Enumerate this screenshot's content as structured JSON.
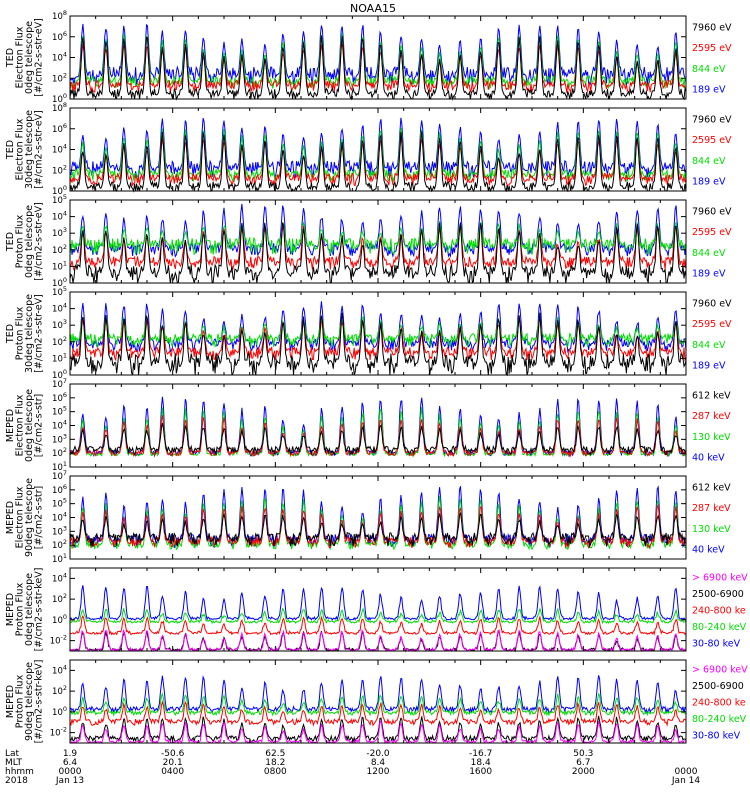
{
  "title": "NOAA15",
  "chart_data": [
    {
      "type": "line",
      "instrument": "TED",
      "ylabel": [
        "TED",
        "Electron Flux",
        "0deg telescope",
        "[#/cm2-s-str-eV]"
      ],
      "yticks": [
        {
          "v": 0,
          "t": "10",
          "e": "0"
        },
        {
          "v": 2,
          "t": "10",
          "e": "2"
        },
        {
          "v": 4,
          "t": "10",
          "e": "4"
        },
        {
          "v": 6,
          "t": "10",
          "e": "6"
        },
        {
          "v": 8,
          "t": "10",
          "e": "8"
        }
      ],
      "ylim": [
        0,
        8
      ],
      "series": [
        {
          "name": "7960 eV",
          "color": "#000000",
          "base": 0.4,
          "spread": 0.6,
          "peaks": 6.0
        },
        {
          "name": "2595 eV",
          "color": "#ff0000",
          "base": 1.2,
          "spread": 0.6,
          "peaks": 5.2
        },
        {
          "name": "844 eV",
          "color": "#00dd00",
          "base": 1.6,
          "spread": 0.6,
          "peaks": 6.2
        },
        {
          "name": "189 eV",
          "color": "#0000ff",
          "base": 2.2,
          "spread": 0.9,
          "peaks": 7.2
        }
      ]
    },
    {
      "type": "line",
      "instrument": "TED",
      "ylabel": [
        "TED",
        "Electron Flux",
        "30deg telescope",
        "[#/cm2-s-str-eV]"
      ],
      "yticks": [
        {
          "v": 0,
          "t": "10",
          "e": "0"
        },
        {
          "v": 2,
          "t": "10",
          "e": "2"
        },
        {
          "v": 4,
          "t": "10",
          "e": "4"
        },
        {
          "v": 6,
          "t": "10",
          "e": "6"
        },
        {
          "v": 8,
          "t": "10",
          "e": "8"
        }
      ],
      "ylim": [
        0,
        8
      ],
      "series": [
        {
          "name": "7960 eV",
          "color": "#000000",
          "base": 0.3,
          "spread": 0.6,
          "peaks": 5.6
        },
        {
          "name": "2595 eV",
          "color": "#ff0000",
          "base": 1.1,
          "spread": 0.6,
          "peaks": 5.0
        },
        {
          "name": "844 eV",
          "color": "#00dd00",
          "base": 1.5,
          "spread": 0.6,
          "peaks": 6.0
        },
        {
          "name": "189 eV",
          "color": "#0000ff",
          "base": 2.1,
          "spread": 0.8,
          "peaks": 7.0
        }
      ]
    },
    {
      "type": "line",
      "instrument": "TED",
      "ylabel": [
        "TED",
        "Proton Flux",
        "0deg telescope",
        "[#/cm2-s-str-eV]"
      ],
      "yticks": [
        {
          "v": 0,
          "t": "10",
          "e": "0"
        },
        {
          "v": 1,
          "t": "10",
          "e": "1"
        },
        {
          "v": 2,
          "t": "10",
          "e": "2"
        },
        {
          "v": 3,
          "t": "10",
          "e": "3"
        },
        {
          "v": 4,
          "t": "10",
          "e": "4"
        },
        {
          "v": 5,
          "t": "10",
          "e": "5"
        }
      ],
      "ylim": [
        0,
        5
      ],
      "series": [
        {
          "name": "7960 eV",
          "color": "#000000",
          "base": 0.5,
          "spread": 0.6,
          "peaks": 3.6
        },
        {
          "name": "2595 eV",
          "color": "#ff0000",
          "base": 1.2,
          "spread": 0.4,
          "peaks": 3.4
        },
        {
          "name": "844 eV",
          "color": "#00dd00",
          "base": 2.2,
          "spread": 0.5,
          "peaks": 3.6
        },
        {
          "name": "189 eV",
          "color": "#0000ff",
          "base": 2.0,
          "spread": 0.4,
          "peaks": 4.6
        }
      ]
    },
    {
      "type": "line",
      "instrument": "TED",
      "ylabel": [
        "TED",
        "Proton Flux",
        "30deg telescope",
        "[#/cm2-s-str-eV]"
      ],
      "yticks": [
        {
          "v": 0,
          "t": "10",
          "e": "0"
        },
        {
          "v": 1,
          "t": "10",
          "e": "1"
        },
        {
          "v": 2,
          "t": "10",
          "e": "2"
        },
        {
          "v": 3,
          "t": "10",
          "e": "3"
        },
        {
          "v": 4,
          "t": "10",
          "e": "4"
        },
        {
          "v": 5,
          "t": "10",
          "e": "5"
        }
      ],
      "ylim": [
        0,
        5
      ],
      "series": [
        {
          "name": "7960 eV",
          "color": "#000000",
          "base": 0.6,
          "spread": 0.7,
          "peaks": 3.6
        },
        {
          "name": "2595 eV",
          "color": "#ff0000",
          "base": 1.3,
          "spread": 0.4,
          "peaks": 3.3
        },
        {
          "name": "844 eV",
          "color": "#00dd00",
          "base": 2.1,
          "spread": 0.4,
          "peaks": 3.4
        },
        {
          "name": "189 eV",
          "color": "#0000ff",
          "base": 1.8,
          "spread": 0.4,
          "peaks": 4.3
        }
      ]
    },
    {
      "type": "line",
      "instrument": "MEPED",
      "ylabel": [
        "MEPED",
        "Electron Flux",
        "0deg telescope",
        "[#/cm2-s-str]"
      ],
      "yticks": [
        {
          "v": 1,
          "t": "10",
          "e": "1"
        },
        {
          "v": 2,
          "t": "10",
          "e": "2"
        },
        {
          "v": 3,
          "t": "10",
          "e": "3"
        },
        {
          "v": 4,
          "t": "10",
          "e": "4"
        },
        {
          "v": 5,
          "t": "10",
          "e": "5"
        },
        {
          "v": 6,
          "t": "10",
          "e": "6"
        },
        {
          "v": 7,
          "t": "10",
          "e": "7"
        }
      ],
      "ylim": [
        1,
        7
      ],
      "series": [
        {
          "name": "612 keV",
          "color": "#000000",
          "base": 2.2,
          "spread": 0.3,
          "peaks": 4.0
        },
        {
          "name": "287 keV",
          "color": "#ff0000",
          "base": 2.0,
          "spread": 0.2,
          "peaks": 4.6
        },
        {
          "name": "130 keV",
          "color": "#00dd00",
          "base": 1.9,
          "spread": 0.1,
          "peaks": 5.2
        },
        {
          "name": "40 keV",
          "color": "#0000ff",
          "base": 2.0,
          "spread": 0.2,
          "peaks": 6.0
        }
      ]
    },
    {
      "type": "line",
      "instrument": "MEPED",
      "ylabel": [
        "MEPED",
        "Electron Flux",
        "90deg telescope",
        "[#/cm2-s-str]"
      ],
      "yticks": [
        {
          "v": 1,
          "t": "10",
          "e": "1"
        },
        {
          "v": 2,
          "t": "10",
          "e": "2"
        },
        {
          "v": 3,
          "t": "10",
          "e": "3"
        },
        {
          "v": 4,
          "t": "10",
          "e": "4"
        },
        {
          "v": 5,
          "t": "10",
          "e": "5"
        },
        {
          "v": 6,
          "t": "10",
          "e": "6"
        },
        {
          "v": 7,
          "t": "10",
          "e": "7"
        }
      ],
      "ylim": [
        1,
        7
      ],
      "series": [
        {
          "name": "612 keV",
          "color": "#000000",
          "base": 2.4,
          "spread": 0.5,
          "peaks": 4.2
        },
        {
          "name": "287 keV",
          "color": "#ff0000",
          "base": 2.2,
          "spread": 0.4,
          "peaks": 4.8
        },
        {
          "name": "130 keV",
          "color": "#00dd00",
          "base": 2.0,
          "spread": 0.3,
          "peaks": 5.4
        },
        {
          "name": "40 keV",
          "color": "#0000ff",
          "base": 2.3,
          "spread": 0.5,
          "peaks": 6.2
        }
      ]
    },
    {
      "type": "line",
      "instrument": "MEPED",
      "ylabel": [
        "MEPED",
        "Proton Flux",
        "0deg telescope",
        "[#/cm2-s-str-keV]"
      ],
      "yticks": [
        {
          "v": -2,
          "t": "10",
          "e": "-2"
        },
        {
          "v": 0,
          "t": "10",
          "e": "0"
        },
        {
          "v": 2,
          "t": "10",
          "e": "2"
        },
        {
          "v": 4,
          "t": "10",
          "e": "4"
        }
      ],
      "ylim": [
        -3,
        5
      ],
      "series": [
        {
          "name": "> 6900 keV",
          "color": "#ff00ff",
          "base": -2.9,
          "spread": 0.1,
          "peaks": -1.0
        },
        {
          "name": "2500-6900",
          "color": "#000000",
          "base": -2.9,
          "spread": 0.1,
          "peaks": -1.2
        },
        {
          "name": "240-800 ke",
          "color": "#ff0000",
          "base": -1.3,
          "spread": 0.1,
          "peaks": 0.2
        },
        {
          "name": "80-240 keV",
          "color": "#00dd00",
          "base": -0.2,
          "spread": 0.1,
          "peaks": 1.0
        },
        {
          "name": "30-80 keV",
          "color": "#0000ff",
          "base": 0.1,
          "spread": 0.1,
          "peaks": 3.2
        }
      ]
    },
    {
      "type": "line",
      "instrument": "MEPED",
      "ylabel": [
        "MEPED",
        "Proton Flux",
        "90deg telescope",
        "[#/cm2-s-str-keV]"
      ],
      "yticks": [
        {
          "v": -2,
          "t": "10",
          "e": "-2"
        },
        {
          "v": 0,
          "t": "10",
          "e": "0"
        },
        {
          "v": 2,
          "t": "10",
          "e": "2"
        },
        {
          "v": 4,
          "t": "10",
          "e": "4"
        }
      ],
      "ylim": [
        -3,
        5
      ],
      "series": [
        {
          "name": "> 6900 keV",
          "color": "#ff00ff",
          "base": -2.9,
          "spread": 0.1,
          "peaks": -1.0
        },
        {
          "name": "2500-6900",
          "color": "#000000",
          "base": -2.6,
          "spread": 0.3,
          "peaks": -0.5
        },
        {
          "name": "240-800 ke",
          "color": "#ff0000",
          "base": -1.0,
          "spread": 0.3,
          "peaks": 0.8
        },
        {
          "name": "80-240 keV",
          "color": "#00dd00",
          "base": -0.1,
          "spread": 0.2,
          "peaks": 1.6
        },
        {
          "name": "30-80 keV",
          "color": "#0000ff",
          "base": 0.2,
          "spread": 0.3,
          "peaks": 3.4
        }
      ]
    }
  ],
  "x_axis": {
    "row_labels": [
      "Lat",
      "MLT",
      "hhmm",
      "2018"
    ],
    "ticks": [
      {
        "hour": 0.0,
        "lat": "1.9",
        "mlt": "6.4",
        "hhmm": "0000",
        "date": "Jan 13"
      },
      {
        "hour": 4.0,
        "lat": "-50.6",
        "mlt": "20.1",
        "hhmm": "0400",
        "date": ""
      },
      {
        "hour": 8.0,
        "lat": "62.5",
        "mlt": "18.2",
        "hhmm": "0800",
        "date": ""
      },
      {
        "hour": 12.0,
        "lat": "-20.0",
        "mlt": "8.4",
        "hhmm": "1200",
        "date": ""
      },
      {
        "hour": 16.0,
        "lat": "-16.7",
        "mlt": "18.4",
        "hhmm": "1600",
        "date": ""
      },
      {
        "hour": 20.0,
        "lat": "50.3",
        "mlt": "6.7",
        "hhmm": "2000",
        "date": ""
      },
      {
        "hour": 24.0,
        "lat": "",
        "mlt": "",
        "hhmm": "0000",
        "date": "Jan 14"
      }
    ],
    "xlim": [
      0,
      24
    ]
  }
}
